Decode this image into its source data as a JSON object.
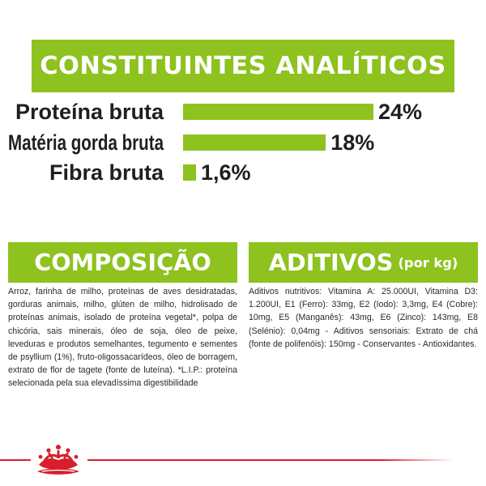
{
  "banner": {
    "title": "CONSTITUINTES ANALÍTICOS"
  },
  "nutrients": [
    {
      "label": "Proteína bruta",
      "value": "24%",
      "percent": 24
    },
    {
      "label": "Matéria gorda bruta",
      "value": "18%",
      "percent": 18
    },
    {
      "label": "Fibra bruta",
      "value": "1,6%",
      "percent": 1.6
    }
  ],
  "composition": {
    "title": "COMPOSIÇÃO",
    "text": "Arroz, farinha de milho, proteínas de aves desidratadas, gorduras animais, milho, glúten de milho, hidrolisado de proteínas animais, isolado de proteína vegetal*, polpa de chicória, sais minerais, óleo de soja, óleo de peixe, leveduras e produtos semelhantes, tegumento e sementes de psyllium (1%), fruto-oligossacarídeos, óleo de borragem, extrato de flor de tagete (fonte de luteína). *L.I.P.: proteína selecionada pela sua elevadíssima digestibilidade"
  },
  "additives": {
    "title": "ADITIVOS",
    "subtitle": "(por kg)",
    "text": "Aditivos nutritivos: Vitamina A: 25.000UI, Vitamina D3: 1.200UI, E1 (Ferro): 33mg, E2 (Iodo): 3,3mg, E4 (Cobre): 10mg, E5 (Manganês): 43mg, E6 (Zinco): 143mg, E8 (Selénio): 0,04mg - Aditivos sensoriais: Extrato de chá (fonte de polifenóis): 150mg - Conservantes - Antioxidantes."
  },
  "colors": {
    "accent": "#8dc21f",
    "brand_red": "#d81e2c"
  },
  "footer": {
    "logo_icon": "crown-icon"
  }
}
